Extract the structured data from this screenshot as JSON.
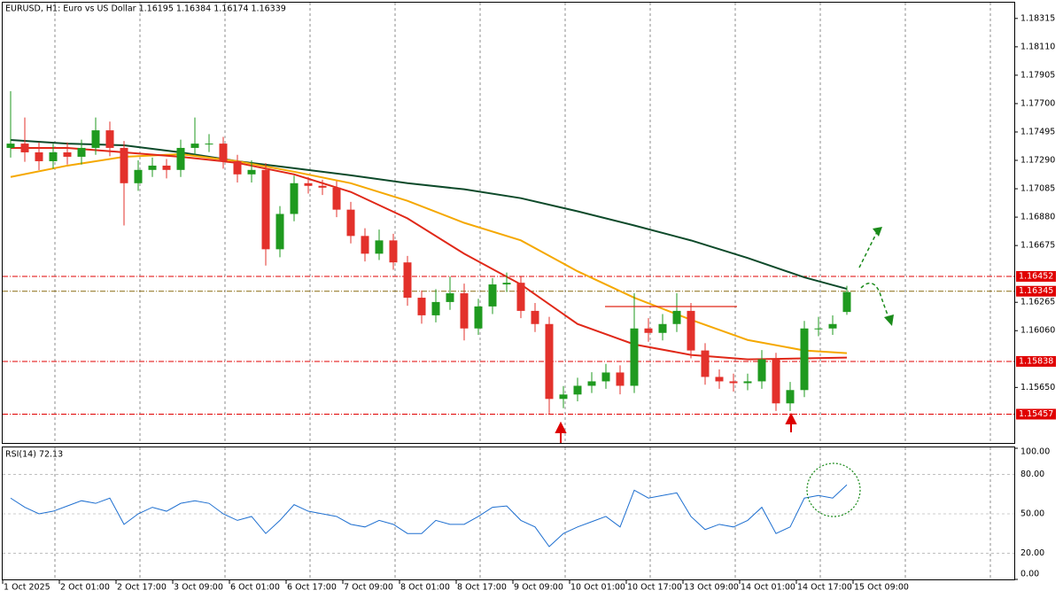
{
  "chart_data": [
    {
      "type": "candlestick",
      "title": "EURUSD, H1:  Euro vs US Dollar  1.16195 1.16384 1.16174 1.16339",
      "up_color": "#1f9a1f",
      "down_color": "#e3312b",
      "open": [
        1.1738,
        1.17411,
        1.17348,
        1.17284,
        1.17348,
        1.17316,
        1.1738,
        1.17507,
        1.1738,
        1.17125,
        1.17221,
        1.17252,
        1.17221,
        1.1738,
        1.17411,
        1.17411,
        1.17284,
        1.17189,
        1.17221,
        1.16648,
        1.16903,
        1.17125,
        1.17106,
        1.17093,
        1.16934,
        1.16744,
        1.16616,
        1.16712,
        1.16553,
        1.16298,
        1.16171,
        1.16267,
        1.1633,
        1.16076,
        1.16235,
        1.16394,
        1.16406,
        1.16203,
        1.16108,
        1.15567,
        1.15599,
        1.15662,
        1.15694,
        1.15758,
        1.15662,
        1.16076,
        1.16044,
        1.16108,
        1.16203,
        1.15917,
        1.15726,
        1.15694,
        1.15681,
        1.15694,
        1.15853,
        1.15535,
        1.15631,
        1.16076,
        1.16076,
        1.16195
      ],
      "high": [
        1.1779,
        1.176,
        1.1742,
        1.1741,
        1.1742,
        1.1744,
        1.176,
        1.1757,
        1.1743,
        1.1729,
        1.1731,
        1.173,
        1.1744,
        1.176,
        1.1748,
        1.1746,
        1.1733,
        1.1729,
        1.1727,
        1.1696,
        1.1718,
        1.1717,
        1.1715,
        1.1714,
        1.1699,
        1.168,
        1.1679,
        1.1676,
        1.166,
        1.1635,
        1.1636,
        1.1645,
        1.164,
        1.1629,
        1.1644,
        1.1648,
        1.1645,
        1.1626,
        1.1616,
        1.1566,
        1.1572,
        1.1576,
        1.1582,
        1.1581,
        1.1633,
        1.1615,
        1.1618,
        1.1633,
        1.1626,
        1.1597,
        1.1578,
        1.1575,
        1.1575,
        1.1592,
        1.159,
        1.1569,
        1.1613,
        1.1616,
        1.1617,
        1.16384
      ],
      "low": [
        1.1731,
        1.1728,
        1.1722,
        1.1723,
        1.1726,
        1.1726,
        1.1733,
        1.1732,
        1.1682,
        1.1707,
        1.1717,
        1.1716,
        1.1717,
        1.1733,
        1.1735,
        1.1723,
        1.1713,
        1.1713,
        1.1653,
        1.1659,
        1.1685,
        1.1705,
        1.1704,
        1.1688,
        1.1669,
        1.1656,
        1.1657,
        1.165,
        1.1624,
        1.1611,
        1.1612,
        1.1621,
        1.1599,
        1.1603,
        1.1618,
        1.1634,
        1.1615,
        1.1605,
        1.15457,
        1.155,
        1.1555,
        1.1561,
        1.1564,
        1.156,
        1.1561,
        1.1598,
        1.1599,
        1.1605,
        1.1586,
        1.1567,
        1.1564,
        1.1562,
        1.1563,
        1.1564,
        1.1548,
        1.1548,
        1.1558,
        1.1602,
        1.1603,
        1.16174
      ],
      "close": [
        1.17411,
        1.17348,
        1.17284,
        1.17348,
        1.17316,
        1.1738,
        1.17507,
        1.1738,
        1.17125,
        1.17221,
        1.17252,
        1.17221,
        1.1738,
        1.17411,
        1.17411,
        1.17284,
        1.17189,
        1.17221,
        1.16648,
        1.16903,
        1.17125,
        1.17106,
        1.17093,
        1.16934,
        1.16744,
        1.16616,
        1.16712,
        1.16553,
        1.16298,
        1.16171,
        1.16267,
        1.1633,
        1.16076,
        1.16235,
        1.16394,
        1.16406,
        1.16203,
        1.16108,
        1.15567,
        1.15599,
        1.15662,
        1.15694,
        1.15758,
        1.15662,
        1.16076,
        1.16044,
        1.16108,
        1.16203,
        1.15917,
        1.15726,
        1.15694,
        1.15681,
        1.15694,
        1.15853,
        1.15535,
        1.15631,
        1.16076,
        1.16076,
        1.16108,
        1.16339
      ],
      "ma_index": [
        0,
        4,
        8,
        12,
        16,
        20,
        24,
        28,
        32,
        36,
        40,
        44,
        48,
        52,
        56,
        59
      ],
      "overlays": [
        {
          "color": "#0d4a2a",
          "values": [
            1.17437,
            1.17411,
            1.17399,
            1.17348,
            1.17284,
            1.17233,
            1.17182,
            1.17125,
            1.17081,
            1.17017,
            1.16922,
            1.1682,
            1.16712,
            1.16585,
            1.16445,
            1.16362
          ]
        },
        {
          "color": "#f5a800",
          "values": [
            1.1717,
            1.17252,
            1.17316,
            1.17335,
            1.17284,
            1.17208,
            1.17125,
            1.16998,
            1.16839,
            1.16712,
            1.16489,
            1.16298,
            1.16139,
            1.15993,
            1.15917,
            1.15898
          ]
        },
        {
          "color": "#e02818",
          "values": [
            1.1738,
            1.1738,
            1.17348,
            1.17316,
            1.17272,
            1.17189,
            1.17062,
            1.16871,
            1.16616,
            1.16394,
            1.16108,
            1.15961,
            1.15885,
            1.15853,
            1.1586,
            1.15866
          ]
        }
      ],
      "levels": [
        {
          "value": 1.16452,
          "color": "#e00000"
        },
        {
          "value": 1.16345,
          "color": "#8a6a10"
        },
        {
          "value": 1.15838,
          "color": "#e00000"
        },
        {
          "value": 1.15457,
          "color": "#e00000"
        }
      ],
      "ylim": [
        1.15249,
        1.18429
      ],
      "yticks": [
        1.18315,
        {
          "value": 1.1811,
          "label": "1.18110"
        },
        1.17905,
        {
          "value": 1.177,
          "label": "1.17700"
        },
        1.17495,
        {
          "value": 1.1729,
          "label": "1.17290"
        },
        1.17085,
        {
          "value": 1.1688,
          "label": "1.16880"
        },
        1.16675,
        1.16265,
        {
          "value": 1.1606,
          "label": "1.16060"
        },
        {
          "value": 1.1565,
          "label": "1.15650"
        }
      ],
      "x_labels": [
        "1 Oct 2025",
        "2 Oct 01:00",
        "2 Oct 17:00",
        "3 Oct 09:00",
        "6 Oct 01:00",
        "6 Oct 17:00",
        "7 Oct 09:00",
        "8 Oct 01:00",
        "8 Oct 17:00",
        "9 Oct 09:00",
        "10 Oct 01:00",
        "10 Oct 17:00",
        "13 Oct 09:00",
        "14 Oct 01:00",
        "14 Oct 17:00",
        "15 Oct 09:00"
      ]
    },
    {
      "type": "line",
      "title": "RSI(14) 72.13",
      "color": "#1e6fd0",
      "values": [
        62,
        55,
        50,
        52,
        56,
        60,
        58,
        62,
        42,
        50,
        55,
        52,
        58,
        60,
        58,
        50,
        45,
        48,
        35,
        45,
        57,
        52,
        50,
        48,
        42,
        40,
        45,
        42,
        35,
        35,
        45,
        42,
        42,
        48,
        55,
        56,
        45,
        40,
        25,
        35,
        40,
        44,
        48,
        40,
        68,
        62,
        64,
        66,
        48,
        38,
        42,
        40,
        45,
        55,
        35,
        40,
        62,
        64,
        62,
        72.13
      ],
      "ylim": [
        0,
        100
      ],
      "yticks": [
        {
          "value": 100,
          "label": "100.00"
        },
        {
          "value": 80,
          "label": "80.00"
        },
        {
          "value": 50,
          "label": "50.00"
        },
        {
          "value": 20,
          "label": "20.00"
        },
        {
          "value": 0,
          "label": "0.00"
        }
      ]
    }
  ]
}
